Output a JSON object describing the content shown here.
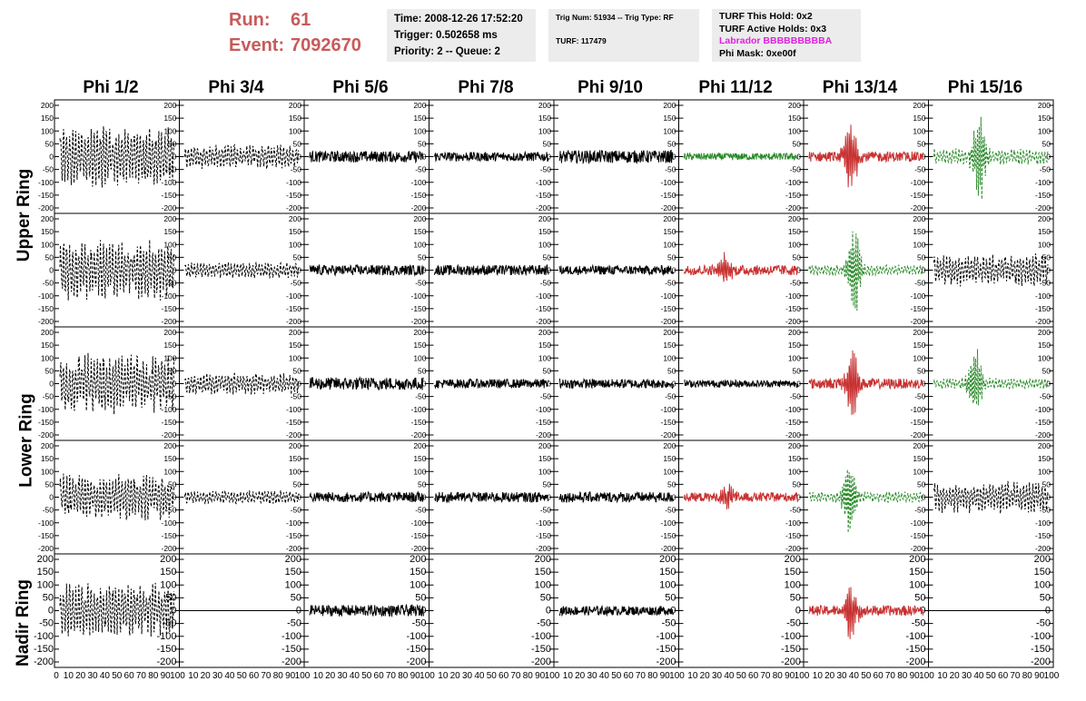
{
  "run_event": {
    "run_label": "Run:",
    "run_value": "61",
    "event_label": "Event:",
    "event_value": "7092670"
  },
  "time_box": {
    "time": "Time: 2008-12-26 17:52:20",
    "trigger": "Trigger: 0.502658 ms",
    "priority": "Priority: 2 -- Queue: 2"
  },
  "trig_box": {
    "trig": "Trig Num: 51934 -- Trig Type: RF",
    "turf": "TURF: 117479"
  },
  "turf_box": {
    "this_hold": "TURF This Hold: 0x2",
    "active_holds": "TURF Active Holds: 0x3",
    "labrador": "Labrador BBBBBBBBBA",
    "phi_mask": "Phi Mask: 0xe00f"
  },
  "columns": [
    "Phi 1/2",
    "Phi 3/4",
    "Phi 5/6",
    "Phi 7/8",
    "Phi 9/10",
    "Phi 11/12",
    "Phi 13/14",
    "Phi 15/16"
  ],
  "ring_labels": [
    "Upper Ring",
    "Lower Ring",
    "Nadir Ring"
  ],
  "chart_data": {
    "type": "line",
    "x_range": [
      0,
      100
    ],
    "y_range": [
      -200,
      200
    ],
    "y_tick_labels": [
      "200",
      "150",
      "100",
      "50",
      "0",
      "-50",
      "-100",
      "-150",
      "-200"
    ],
    "x_tick_labels": [
      "0",
      "10",
      "20",
      "30",
      "40",
      "50",
      "60",
      "70",
      "80",
      "90",
      "100"
    ],
    "colors": {
      "normal": "#000000",
      "red": "#c83232",
      "green": "#2a8a2a"
    },
    "panel_rows": [
      [
        {
          "color": "normal",
          "dashed": true,
          "amp": 110,
          "pulse": 0
        },
        {
          "color": "normal",
          "dashed": true,
          "amp": 45,
          "pulse": 0
        },
        {
          "color": "normal",
          "dashed": false,
          "amp": 22,
          "pulse": 0
        },
        {
          "color": "normal",
          "dashed": false,
          "amp": 18,
          "pulse": 0
        },
        {
          "color": "normal",
          "dashed": false,
          "amp": 25,
          "pulse": 0
        },
        {
          "color": "green",
          "dashed": false,
          "amp": 14,
          "pulse": 0
        },
        {
          "color": "red",
          "dashed": false,
          "amp": 20,
          "pulse": 150
        },
        {
          "color": "green",
          "dashed": true,
          "amp": 30,
          "pulse": 170
        }
      ],
      [
        {
          "color": "normal",
          "dashed": true,
          "amp": 110,
          "pulse": 0
        },
        {
          "color": "normal",
          "dashed": true,
          "amp": 30,
          "pulse": 0
        },
        {
          "color": "normal",
          "dashed": false,
          "amp": 20,
          "pulse": 0
        },
        {
          "color": "normal",
          "dashed": false,
          "amp": 20,
          "pulse": 0
        },
        {
          "color": "normal",
          "dashed": false,
          "amp": 18,
          "pulse": 0
        },
        {
          "color": "red",
          "dashed": false,
          "amp": 20,
          "pulse": 60
        },
        {
          "color": "green",
          "dashed": true,
          "amp": 20,
          "pulse": 170
        },
        {
          "color": "normal",
          "dashed": true,
          "amp": 60,
          "pulse": 0
        }
      ],
      [
        {
          "color": "normal",
          "dashed": true,
          "amp": 110,
          "pulse": 0
        },
        {
          "color": "normal",
          "dashed": true,
          "amp": 40,
          "pulse": 0
        },
        {
          "color": "normal",
          "dashed": false,
          "amp": 25,
          "pulse": 0
        },
        {
          "color": "normal",
          "dashed": false,
          "amp": 18,
          "pulse": 0
        },
        {
          "color": "normal",
          "dashed": false,
          "amp": 18,
          "pulse": 0
        },
        {
          "color": "normal",
          "dashed": false,
          "amp": 14,
          "pulse": 0
        },
        {
          "color": "red",
          "dashed": false,
          "amp": 20,
          "pulse": 150
        },
        {
          "color": "green",
          "dashed": true,
          "amp": 20,
          "pulse": 150
        }
      ],
      [
        {
          "color": "normal",
          "dashed": true,
          "amp": 90,
          "pulse": 0
        },
        {
          "color": "normal",
          "dashed": true,
          "amp": 25,
          "pulse": 0
        },
        {
          "color": "normal",
          "dashed": false,
          "amp": 20,
          "pulse": 0
        },
        {
          "color": "normal",
          "dashed": false,
          "amp": 20,
          "pulse": 0
        },
        {
          "color": "normal",
          "dashed": false,
          "amp": 20,
          "pulse": 0
        },
        {
          "color": "red",
          "dashed": false,
          "amp": 18,
          "pulse": 50
        },
        {
          "color": "green",
          "dashed": true,
          "amp": 20,
          "pulse": 160
        },
        {
          "color": "normal",
          "dashed": true,
          "amp": 60,
          "pulse": 0
        }
      ],
      [
        {
          "color": "normal",
          "dashed": true,
          "amp": 100,
          "pulse": 0
        },
        {
          "color": "normal",
          "dashed": false,
          "amp": 0,
          "pulse": 0,
          "flat": true
        },
        {
          "color": "normal",
          "dashed": false,
          "amp": 22,
          "pulse": 0
        },
        {
          "color": "empty"
        },
        {
          "color": "normal",
          "dashed": false,
          "amp": 18,
          "pulse": 0
        },
        {
          "color": "empty"
        },
        {
          "color": "red",
          "dashed": false,
          "amp": 20,
          "pulse": 120
        },
        {
          "color": "normal",
          "dashed": false,
          "amp": 0,
          "pulse": 0,
          "flat": true
        }
      ]
    ]
  }
}
